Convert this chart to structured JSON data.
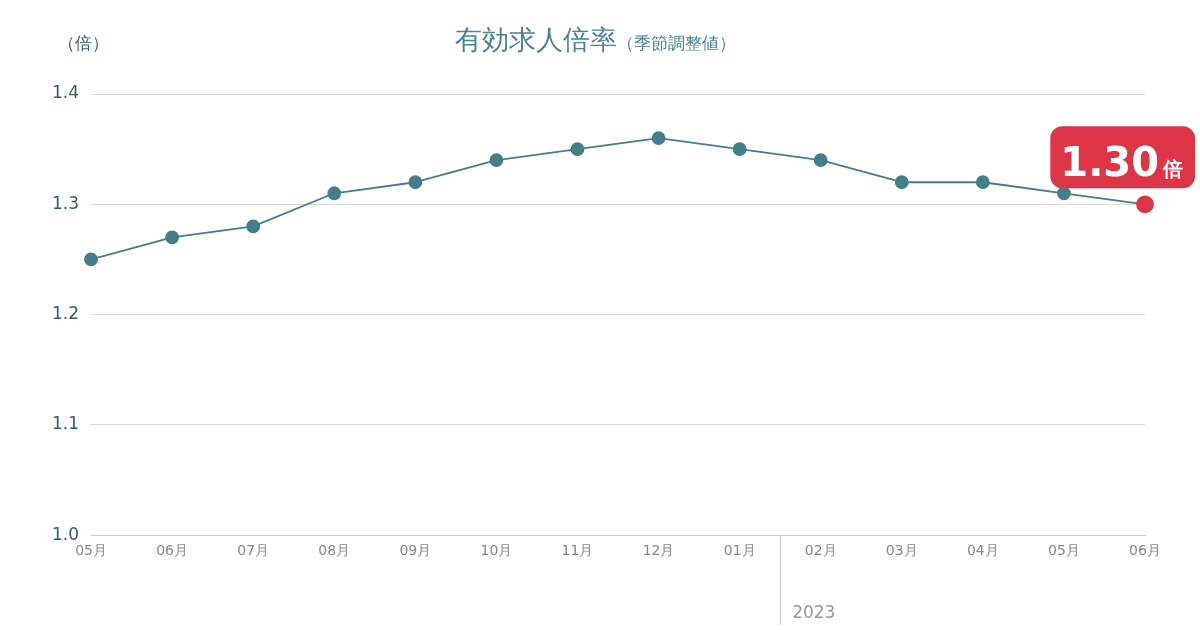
{
  "chart_data": {
    "type": "line",
    "title": "有効求人倍率",
    "subtitle": "（季節調整値）",
    "ylabel": "（倍）",
    "categories": [
      "05月",
      "06月",
      "07月",
      "08月",
      "09月",
      "10月",
      "11月",
      "12月",
      "01月",
      "02月",
      "03月",
      "04月",
      "05月",
      "06月"
    ],
    "series": [
      {
        "color": "#427f8a",
        "colors": [
          "#427f8a",
          "#427f8a",
          "#427f8a",
          "#427f8a",
          "#427f8a",
          "#427f8a",
          "#427f8a",
          "#427f8a",
          "#427f8a",
          "#427f8a",
          "#427f8a",
          "#427f8a",
          "#427f8a",
          "#dc3545"
        ],
        "values": [
          1.25,
          1.27,
          1.28,
          1.31,
          1.32,
          1.34,
          1.35,
          1.36,
          1.35,
          1.34,
          1.32,
          1.32,
          1.31,
          1.3
        ],
        "value_labels": [
          null,
          null,
          null,
          null,
          null,
          null,
          null,
          null,
          null,
          null,
          null,
          null,
          null,
          "1.30倍"
        ]
      }
    ],
    "ylim": [
      1.0,
      1.4
    ],
    "yticks": [
      {
        "value": 1.0,
        "label": "1.0"
      },
      {
        "value": 1.1,
        "label": "1.1"
      },
      {
        "value": 1.2,
        "label": "1.2"
      },
      {
        "value": 1.3,
        "label": "1.3"
      },
      {
        "value": 1.4,
        "label": "1.4"
      }
    ],
    "annotations": [
      "2023"
    ],
    "grid": "y",
    "legend": false,
    "marker": "circle",
    "line_style": "solid"
  }
}
